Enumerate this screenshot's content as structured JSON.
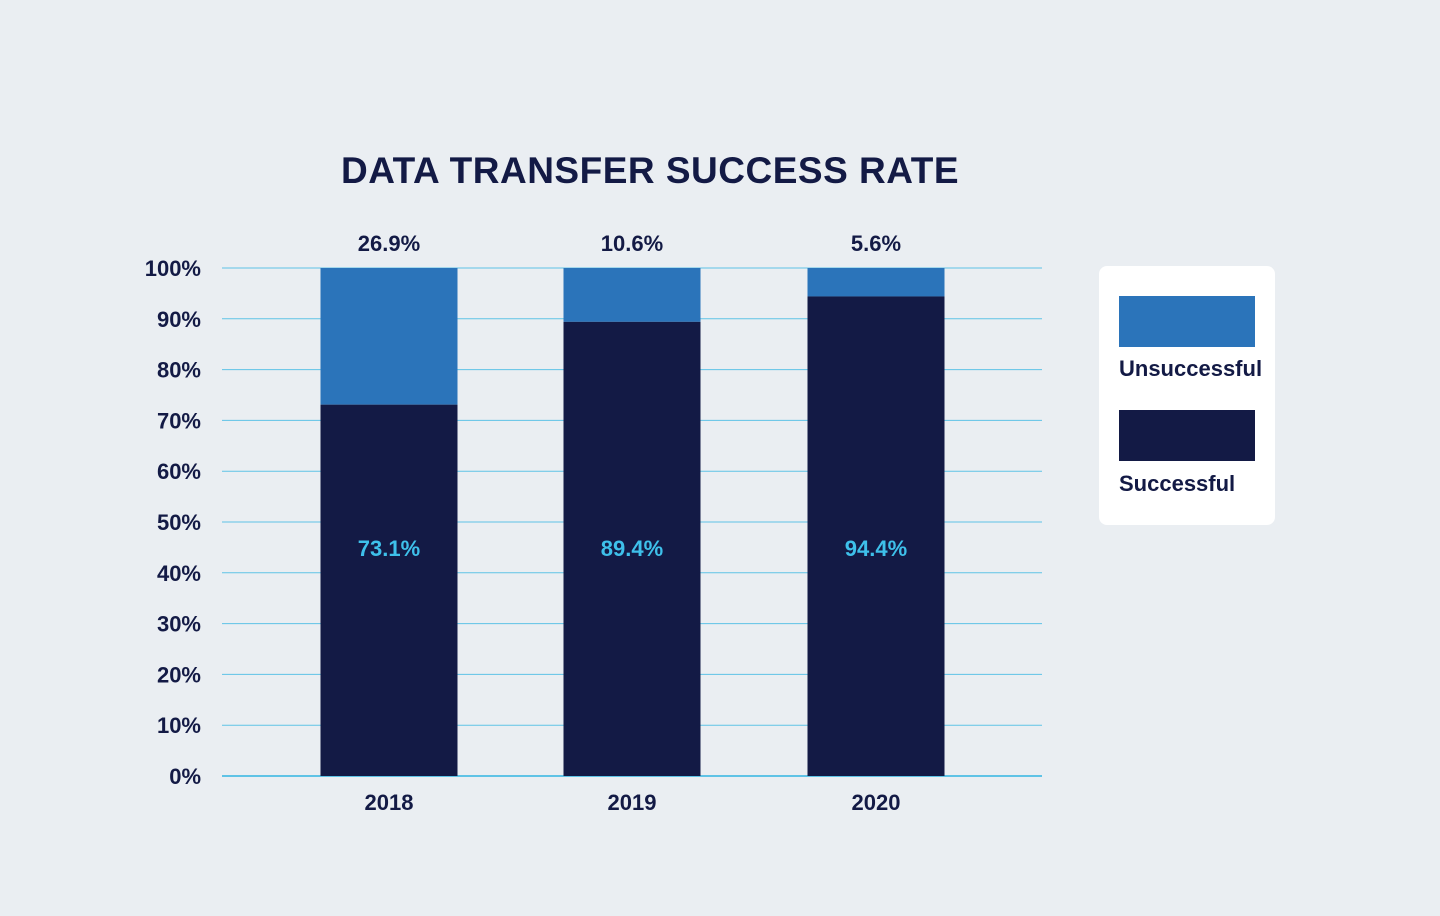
{
  "colors": {
    "background": "#eaeef2",
    "successful": "#131a45",
    "unsuccessful": "#2b74ba",
    "grid": "#5fc3e6",
    "inner_label": "#3ec0ea",
    "text": "#131a45"
  },
  "legend": {
    "placement": "right",
    "items": [
      {
        "label": "Unsuccessful",
        "color": "#2b74ba"
      },
      {
        "label": "Successful",
        "color": "#131a45"
      }
    ]
  },
  "chart_data": {
    "type": "bar",
    "stacked": true,
    "title": "DATA TRANSFER SUCCESS RATE",
    "xlabel": "",
    "ylabel": "",
    "categories": [
      "2018",
      "2019",
      "2020"
    ],
    "series": [
      {
        "name": "Successful",
        "values": [
          73.1,
          89.4,
          94.4
        ],
        "labels": [
          "73.1%",
          "89.4%",
          "94.4%"
        ]
      },
      {
        "name": "Unsuccessful",
        "values": [
          26.9,
          10.6,
          5.6
        ],
        "labels": [
          "26.9%",
          "10.6%",
          "5.6%"
        ]
      }
    ],
    "ylim": [
      0,
      100
    ],
    "yticks": [
      "0%",
      "10%",
      "20%",
      "30%",
      "40%",
      "50%",
      "60%",
      "70%",
      "80%",
      "90%",
      "100%"
    ],
    "grid": true
  }
}
